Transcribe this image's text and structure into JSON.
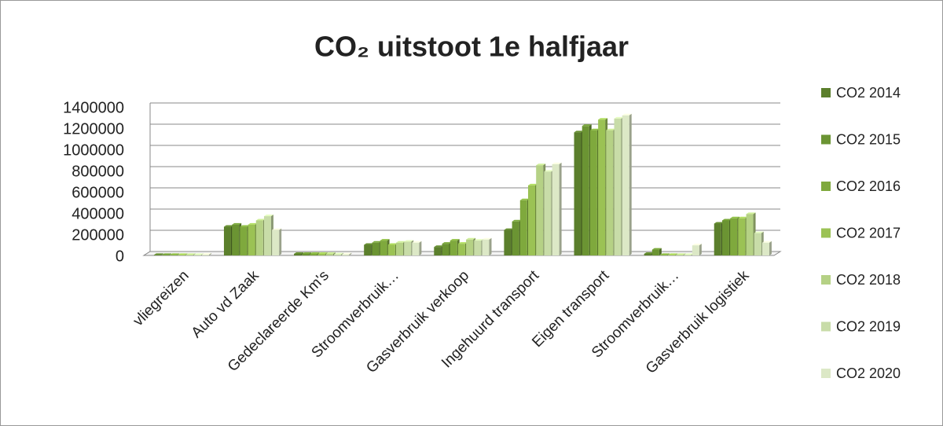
{
  "chart_data": {
    "type": "bar",
    "title": "CO₂ uitstoot 1e halfjaar",
    "categories": [
      "vliegreizen",
      "Auto vd Zaak",
      "Gedeclareerde Km's",
      "Stroomverbruik…",
      "Gasverbruik verkoop",
      "Ingehuurd transport",
      "Eigen transport",
      "Stroomverbruik…",
      "Gasverbruik logistiek"
    ],
    "series": [
      {
        "name": "CO2 2014",
        "color": "#5b7f2c",
        "values": [
          5000,
          270000,
          15000,
          100000,
          80000,
          240000,
          1160000,
          15000,
          300000
        ]
      },
      {
        "name": "CO2 2015",
        "color": "#6b9433",
        "values": [
          5000,
          290000,
          15000,
          120000,
          110000,
          320000,
          1220000,
          55000,
          330000
        ]
      },
      {
        "name": "CO2 2016",
        "color": "#7fa93d",
        "values": [
          5000,
          270000,
          15000,
          140000,
          140000,
          520000,
          1180000,
          5000,
          350000
        ]
      },
      {
        "name": "CO2 2017",
        "color": "#9bc254",
        "values": [
          5000,
          290000,
          15000,
          100000,
          110000,
          660000,
          1280000,
          5000,
          350000
        ]
      },
      {
        "name": "CO2 2018",
        "color": "#b5d185",
        "values": [
          5000,
          330000,
          15000,
          120000,
          150000,
          850000,
          1180000,
          5000,
          390000
        ]
      },
      {
        "name": "CO2 2019",
        "color": "#c8dca8",
        "values": [
          5000,
          370000,
          10000,
          130000,
          140000,
          790000,
          1290000,
          5000,
          210000
        ]
      },
      {
        "name": "CO2 2020",
        "color": "#dce8c6",
        "values": [
          8000,
          240000,
          10000,
          120000,
          150000,
          860000,
          1320000,
          95000,
          120000
        ]
      }
    ],
    "ylim": [
      0,
      1400000
    ],
    "yticks": [
      0,
      200000,
      400000,
      600000,
      800000,
      1000000,
      1200000,
      1400000
    ],
    "grid": true,
    "legend": "right"
  }
}
